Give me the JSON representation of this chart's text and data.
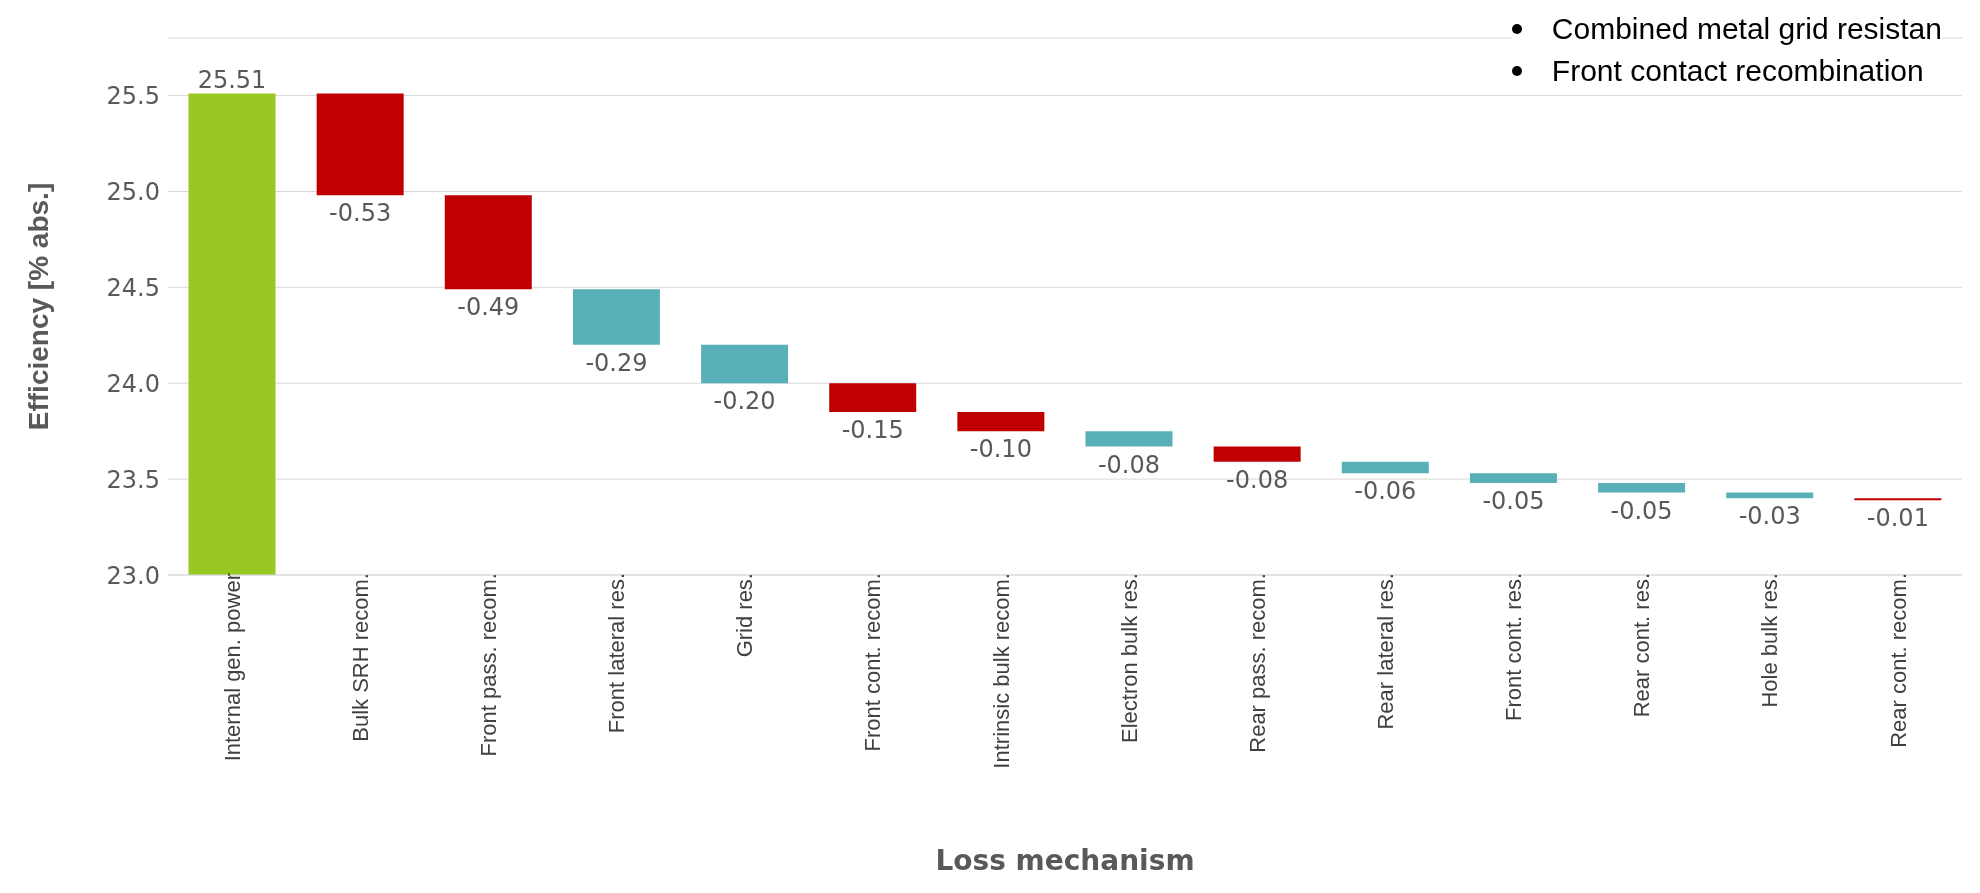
{
  "chart_data": {
    "type": "bar",
    "xlabel": "Loss mechanism",
    "ylabel": "Efficiency [% abs.]",
    "categories": [
      "Internal gen. power",
      "Bulk SRH recom.",
      "Front pass. recom.",
      "Front lateral res.",
      "Grid res.",
      "Front cont. recom.",
      "Intrinsic bulk recom.",
      "Electron bulk res.",
      "Rear pass. recom.",
      "Rear lateral res.",
      "Front cont. res.",
      "Rear cont. res.",
      "Hole bulk res.",
      "Rear cont. recom."
    ],
    "base": [
      23,
      25.51,
      24.98,
      24.49,
      24.2,
      24.0,
      23.85,
      23.75,
      23.67,
      23.59,
      23.53,
      23.48,
      23.43,
      23.4
    ],
    "values": [
      2.51,
      -0.53,
      -0.49,
      -0.29,
      -0.2,
      -0.15,
      -0.1,
      -0.08,
      -0.08,
      -0.06,
      -0.05,
      -0.05,
      -0.03,
      -0.01
    ],
    "value_labels": [
      "25.51",
      "-0.53",
      "-0.49",
      "-0.29",
      "-0.20",
      "-0.15",
      "-0.10",
      "-0.08",
      "-0.08",
      "-0.06",
      "-0.05",
      "-0.05",
      "-0.03",
      "-0.01"
    ],
    "colors": [
      "#9ac823",
      "#c00000",
      "#c00000",
      "#5ab0b8",
      "#5ab0b8",
      "#c00000",
      "#c00000",
      "#5ab0b8",
      "#c00000",
      "#5ab0b8",
      "#5ab0b8",
      "#5ab0b8",
      "#5ab0b8",
      "#c00000"
    ],
    "ylim": [
      23,
      25.8
    ],
    "yticks": [
      {
        "value": 23,
        "label": "23.0"
      },
      {
        "value": 23.5,
        "label": "23.5"
      },
      {
        "value": 24,
        "label": "24.0"
      },
      {
        "value": 24.5,
        "label": "24.5"
      },
      {
        "value": 25,
        "label": "25.0"
      },
      {
        "value": 25.5,
        "label": "25.5"
      }
    ],
    "grid": "y",
    "annotations": [
      "Combined metal grid resistan",
      "Front contact recombination"
    ]
  }
}
